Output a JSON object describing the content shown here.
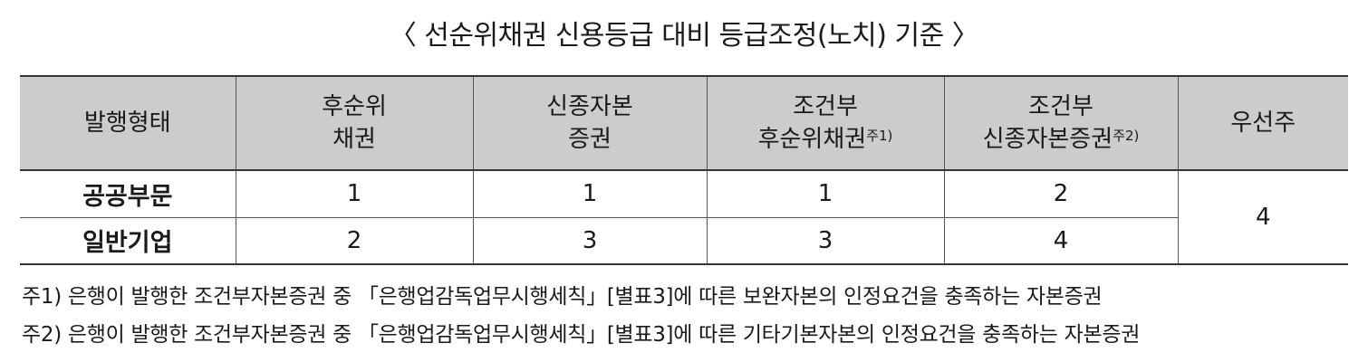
{
  "title": "〈 선순위채권 신용등급 대비 등급조정(노치) 기준 〉",
  "table": {
    "headers": [
      {
        "line1": "발행형태",
        "line2": "",
        "sup": ""
      },
      {
        "line1": "후순위",
        "line2": "채권",
        "sup": ""
      },
      {
        "line1": "신종자본",
        "line2": "증권",
        "sup": ""
      },
      {
        "line1": "조건부",
        "line2": "후순위채권",
        "sup": "주1)"
      },
      {
        "line1": "조건부",
        "line2": "신종자본증권",
        "sup": "주2)"
      },
      {
        "line1": "우선주",
        "line2": "",
        "sup": ""
      }
    ],
    "rows": [
      {
        "label": "공공부문",
        "values": [
          "1",
          "1",
          "1",
          "2"
        ]
      },
      {
        "label": "일반기업",
        "values": [
          "2",
          "3",
          "3",
          "4"
        ]
      }
    ],
    "preferred_stock_value": "4"
  },
  "notes": [
    "주1) 은행이 발행한 조건부자본증권 중 「은행업감독업무시행세칙」[별표3]에 따른 보완자본의 인정요건을 충족하는 자본증권",
    "주2) 은행이 발행한 조건부자본증권 중 「은행업감독업무시행세칙」[별표3]에 따른 기타기본자본의 인정요건을 충족하는 자본증권"
  ]
}
